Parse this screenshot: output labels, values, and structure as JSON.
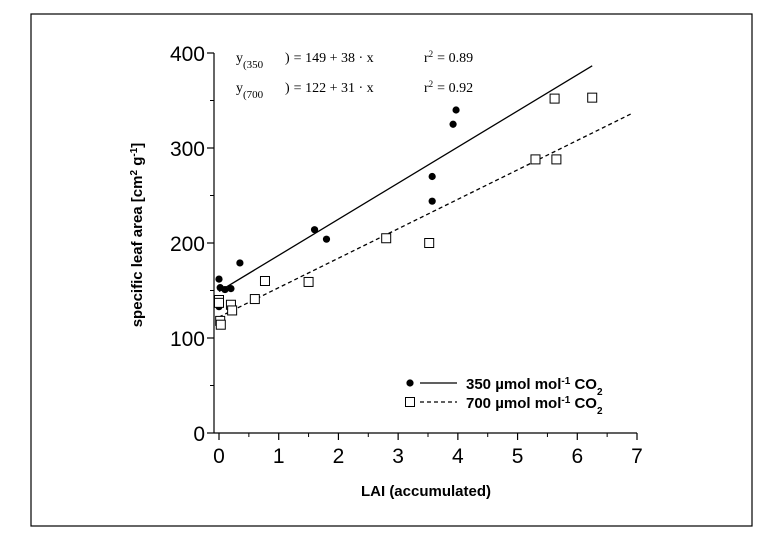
{
  "chart_data": {
    "type": "scatter",
    "xlabel": "LAI (accumulated)",
    "ylabel": "specific leaf area [cm² g⁻¹]",
    "ylabel_parts": {
      "main": "specific leaf area [cm",
      "sup1": "2",
      "mid": " g",
      "sup2": "-1",
      "end": "]"
    },
    "xlim": [
      0,
      7
    ],
    "ylim": [
      0,
      400
    ],
    "x_ticks": [
      "0",
      "1",
      "2",
      "3",
      "4",
      "5",
      "6",
      "7"
    ],
    "y_ticks": [
      "0",
      "100",
      "200",
      "300",
      "400"
    ],
    "grid": false,
    "legend_position": "bottom-right",
    "equations": [
      {
        "lhs": "y",
        "sub": "(350",
        "close": ")",
        "rhs": "= 149 + 38 · x",
        "r2_label": "r",
        "r2_sup": "2",
        "r2_value": "= 0.89"
      },
      {
        "lhs": "y",
        "sub": "(700",
        "close": ")",
        "rhs": "= 122 + 31 · x",
        "r2_label": "r",
        "r2_sup": "2",
        "r2_value": "= 0.92"
      }
    ],
    "series": [
      {
        "name": "350 µmol mol⁻¹ CO₂",
        "legend": {
          "pre": "350 ",
          "mu": "µ",
          "post": "mol mol",
          "sup": "-1",
          "co": " CO",
          "sub": "2"
        },
        "marker": "filled-circle",
        "line_style": "solid",
        "fit": {
          "intercept": 149,
          "slope": 38,
          "x_range": [
            0,
            6.25
          ]
        },
        "points": [
          [
            0.0,
            162
          ],
          [
            0.0,
            133
          ],
          [
            0.02,
            153
          ],
          [
            0.1,
            151
          ],
          [
            0.2,
            152
          ],
          [
            0.35,
            179
          ],
          [
            1.6,
            214
          ],
          [
            1.8,
            204
          ],
          [
            3.57,
            270
          ],
          [
            3.57,
            244
          ],
          [
            3.92,
            325
          ],
          [
            3.97,
            340
          ]
        ]
      },
      {
        "name": "700 µmol mol⁻¹ CO₂",
        "legend": {
          "pre": "700 ",
          "mu": "µ",
          "post": "mol mol",
          "sup": "-1",
          "co": " CO",
          "sub": "2"
        },
        "marker": "open-square",
        "line_style": "dashed",
        "fit": {
          "intercept": 122,
          "slope": 31,
          "x_range": [
            0,
            6.9
          ]
        },
        "points": [
          [
            0.0,
            140
          ],
          [
            0.0,
            137
          ],
          [
            0.02,
            118
          ],
          [
            0.03,
            114
          ],
          [
            0.2,
            135
          ],
          [
            0.22,
            129
          ],
          [
            0.6,
            141
          ],
          [
            0.77,
            160
          ],
          [
            1.5,
            159
          ],
          [
            2.8,
            205
          ],
          [
            3.52,
            200
          ],
          [
            5.3,
            288
          ],
          [
            5.62,
            352
          ],
          [
            5.65,
            288
          ],
          [
            6.25,
            353
          ]
        ]
      }
    ]
  }
}
